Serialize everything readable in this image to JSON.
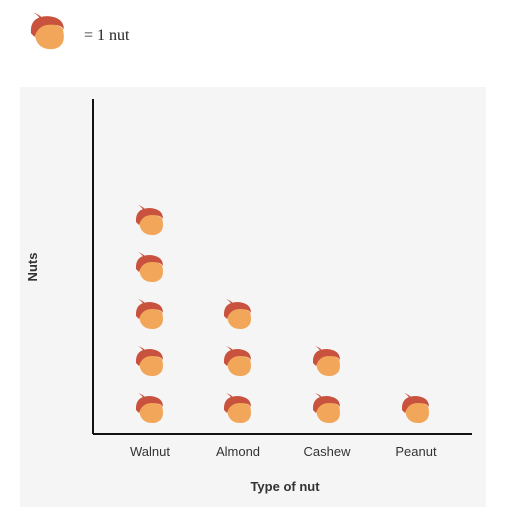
{
  "legend": {
    "icon": "acorn-icon",
    "text": "= 1 nut"
  },
  "colors": {
    "acorn_cap": "#c8523d",
    "acorn_body": "#f2a65a",
    "axis": "#111111",
    "panel": "#f5f5f5"
  },
  "chart_data": {
    "type": "pictograph",
    "title": "",
    "xlabel": "Type of nut",
    "ylabel": "Nuts",
    "icon": "acorn-icon",
    "unit_per_icon": 1,
    "categories": [
      "Walnut",
      "Almond",
      "Cashew",
      "Peanut"
    ],
    "values": [
      5,
      3,
      2,
      1
    ],
    "grid": false
  }
}
